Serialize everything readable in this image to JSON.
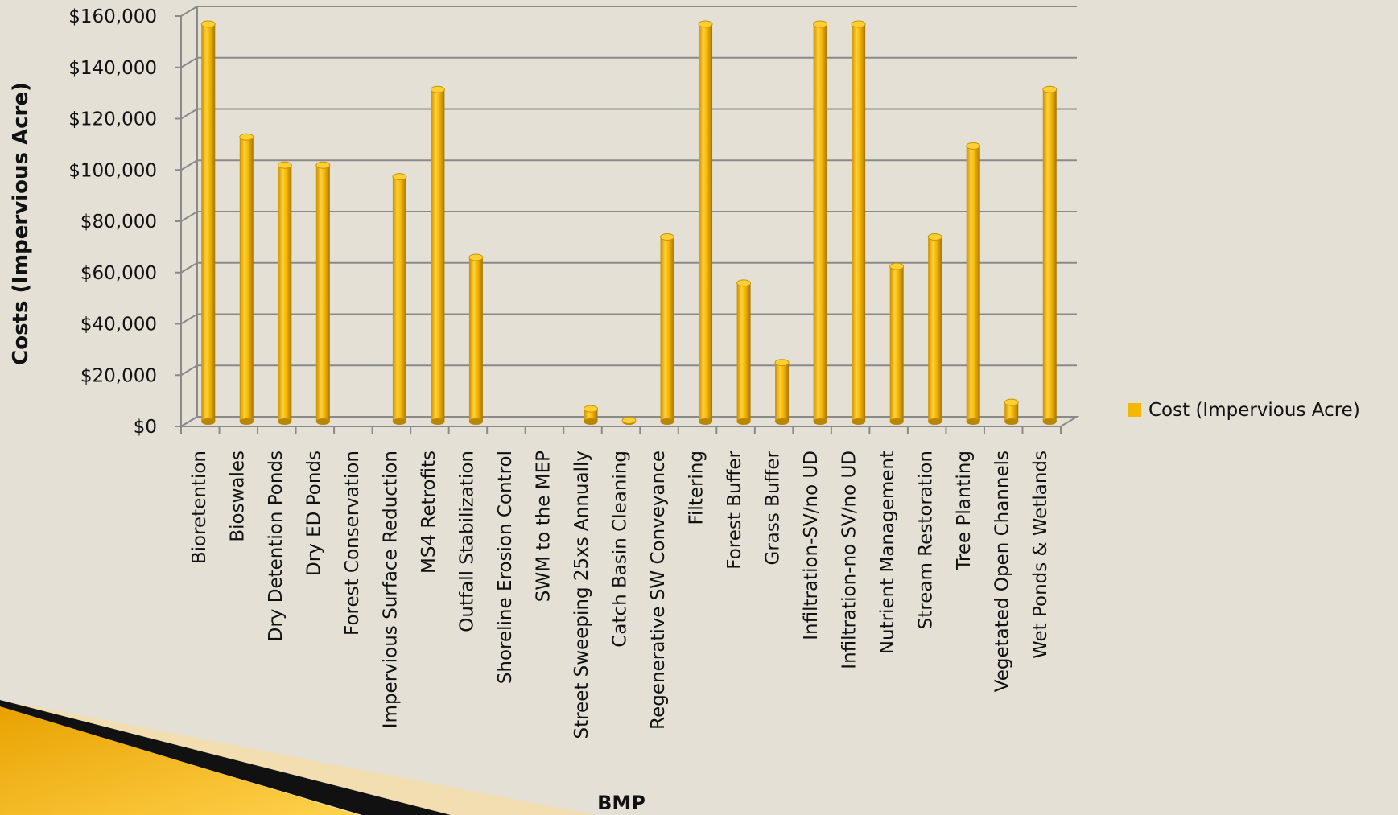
{
  "chart_data": {
    "type": "bar",
    "style": "3d-cylinder",
    "categories": [
      "Bioretention",
      "Bioswales",
      "Dry Detention Ponds",
      "Dry ED Ponds",
      "Forest Conservation",
      "Impervious Surface Reduction",
      "MS4 Retrofits",
      "Outfall Stabilization",
      "Shoreline Erosion Control",
      "SWM to the MEP",
      "Street Sweeping 25xs Annually",
      "Catch Basin Cleaning",
      "Regenerative SW Conveyance",
      "Filtering",
      "Forest Buffer",
      "Grass Buffer",
      "Infiltration-SV/no UD",
      "Infiltration-no SV/no UD",
      "Nutrient Management",
      "Stream Restoration",
      "Tree Planting",
      "Vegetated Open Channels",
      "Wet Ponds & Wetlands"
    ],
    "series": [
      {
        "name": "Cost (Impervious Acre)",
        "color": "#f5b800",
        "values": [
          155000,
          111000,
          100000,
          100000,
          0,
          95500,
          129500,
          64000,
          0,
          0,
          5000,
          500,
          72000,
          155000,
          54000,
          23000,
          155000,
          155000,
          60500,
          72000,
          107500,
          7500,
          129500
        ]
      }
    ],
    "ylim": [
      0,
      160000
    ],
    "yticks": [
      0,
      20000,
      40000,
      60000,
      80000,
      100000,
      120000,
      140000,
      160000
    ],
    "ytick_labels": [
      "$0",
      "$20,000",
      "$40,000",
      "$60,000",
      "$80,000",
      "$100,000",
      "$120,000",
      "$140,000",
      "$160,000"
    ],
    "xlabel": "BMP",
    "ylabel": "Costs (Impervious Acre)",
    "grid": true,
    "legend": "right"
  },
  "colors": {
    "background": "#e4e0d6",
    "gridline": "#888888",
    "bar": "#f5b800",
    "bar_dark": "#b27f00",
    "bar_light": "#ffd84a"
  }
}
